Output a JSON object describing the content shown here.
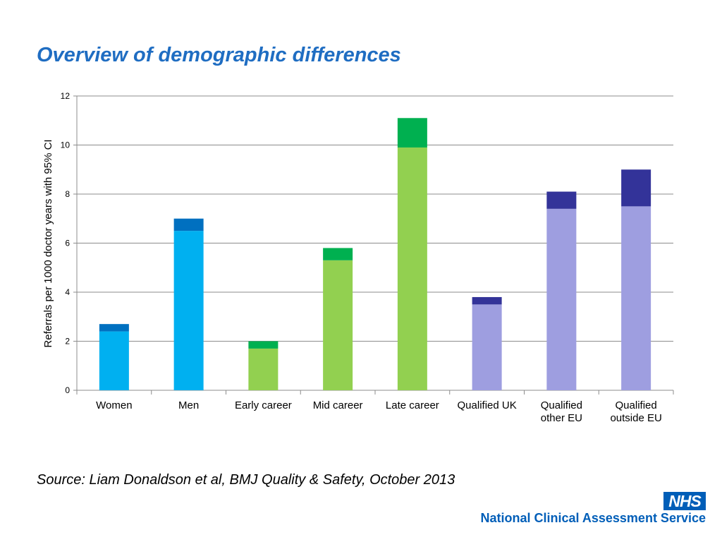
{
  "title": "Overview of demographic differences",
  "source": "Source: Liam Donaldson et al, BMJ Quality & Safety, October 2013",
  "logo": {
    "text": "NHS",
    "org": "National Clinical Assessment Service"
  },
  "chart_data": {
    "type": "bar",
    "stacked": true,
    "ylabel": "Referrals per 1000 doctor years with 95% CI",
    "ylim": [
      0,
      12
    ],
    "yticks": [
      "0",
      "2",
      "4",
      "6",
      "8",
      "10",
      "12"
    ],
    "grid": true,
    "categories": [
      [
        "Women"
      ],
      [
        "Men"
      ],
      [
        "Early career"
      ],
      [
        "Mid career"
      ],
      [
        "Late career"
      ],
      [
        "Qualified UK"
      ],
      [
        "Qualified",
        "other EU"
      ],
      [
        "Qualified",
        "outside EU"
      ]
    ],
    "base_values": [
      2.4,
      6.5,
      1.7,
      5.3,
      9.9,
      3.5,
      7.4,
      7.5
    ],
    "ci_values": [
      0.3,
      0.5,
      0.3,
      0.5,
      1.2,
      0.3,
      0.7,
      1.5
    ],
    "base_colors": [
      "#00b0f0",
      "#00b0f0",
      "#92d050",
      "#92d050",
      "#92d050",
      "#9e9ee0",
      "#9e9ee0",
      "#9e9ee0"
    ],
    "ci_colors": [
      "#0070c0",
      "#0070c0",
      "#00b050",
      "#00b050",
      "#00b050",
      "#333399",
      "#333399",
      "#333399"
    ]
  }
}
